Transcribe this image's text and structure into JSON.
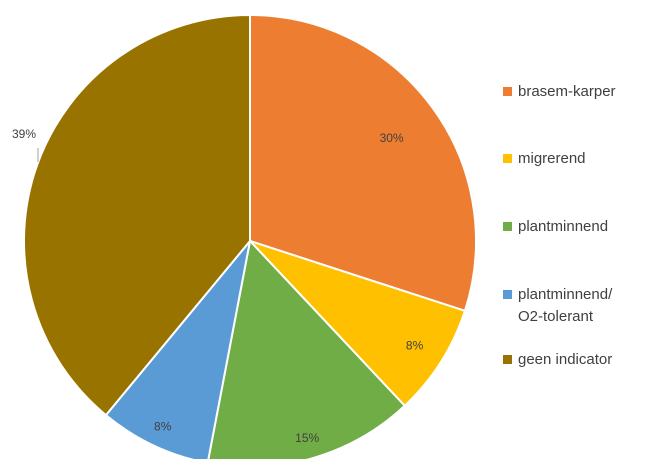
{
  "chart_data": {
    "type": "pie",
    "title": "",
    "start_angle_deg": 0,
    "direction": "clockwise",
    "legend_position": "right",
    "slices": [
      {
        "label": "brasem-karper",
        "value": 30,
        "display": "30%",
        "color": "#ED7D31"
      },
      {
        "label": "migrerend",
        "value": 8,
        "display": "8%",
        "color": "#FFC000"
      },
      {
        "label": "plantminnend",
        "value": 15,
        "display": "15%",
        "color": "#70AD47"
      },
      {
        "label": "plantminnend/\nO2-tolerant",
        "label_lines": [
          "plantminnend/",
          "O2-tolerant"
        ],
        "value": 8,
        "display": "8%",
        "color": "#5B9BD5"
      },
      {
        "label": "geen indicator",
        "value": 39,
        "display": "39%",
        "color": "#997300"
      }
    ]
  }
}
